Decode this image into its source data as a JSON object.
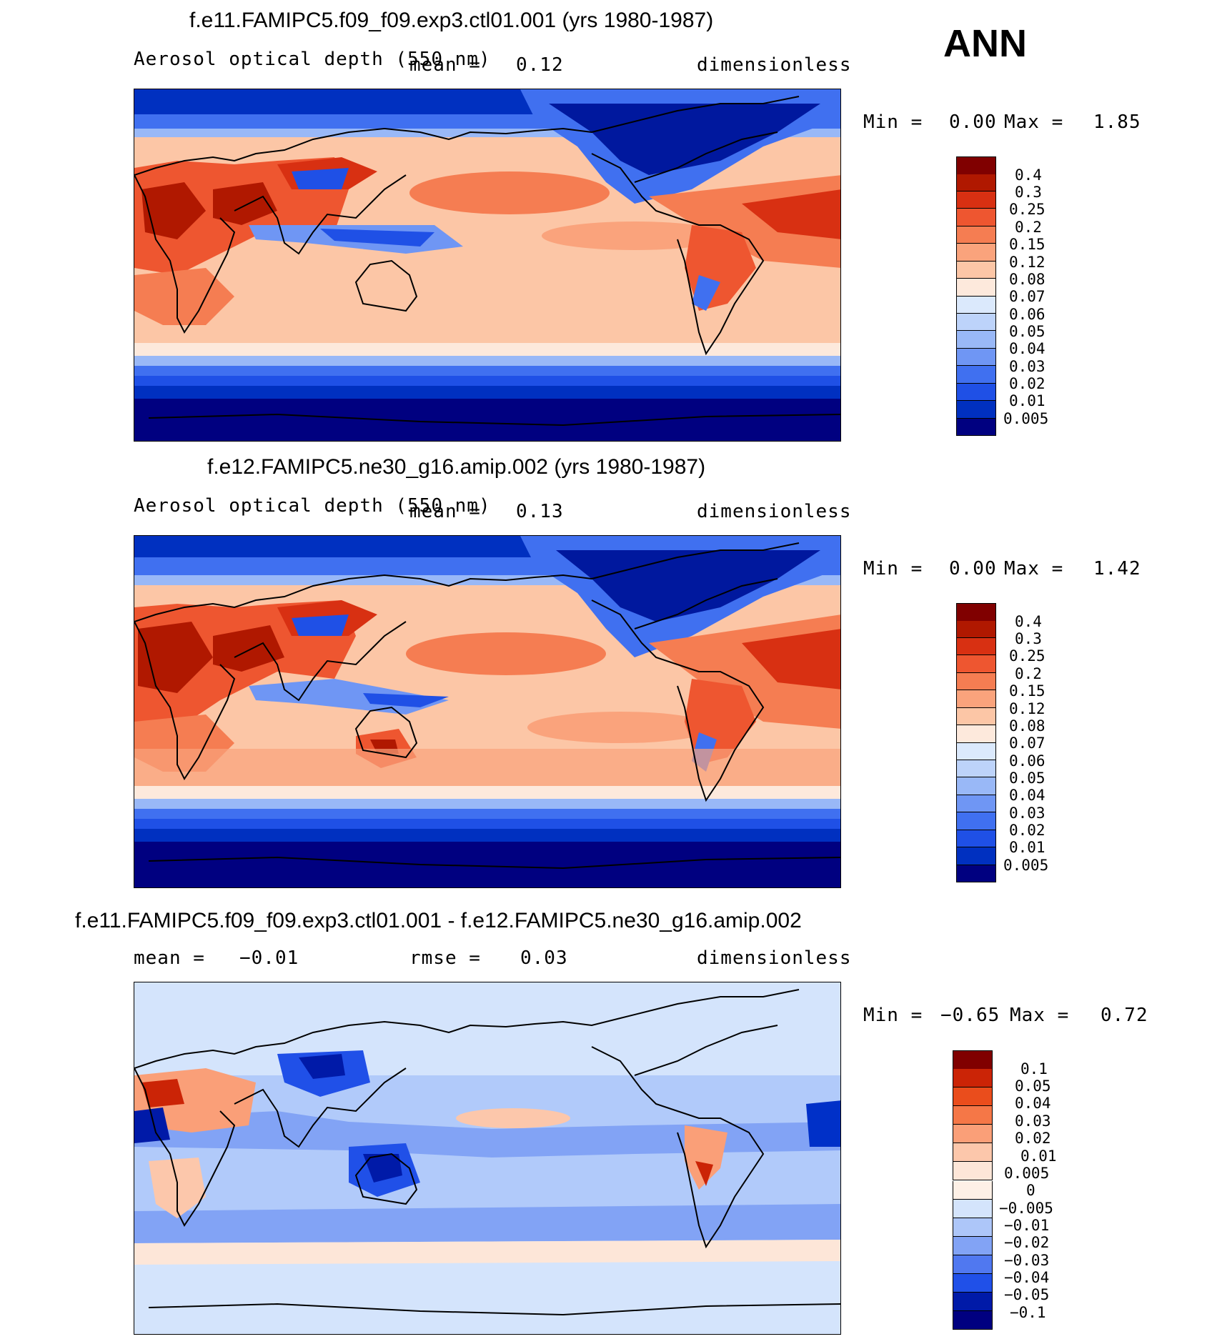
{
  "season": "ANN",
  "panels": [
    {
      "title": "f.e11.FAMIPC5.f09_f09.exp3.ctl01.001 (yrs 1980-1987)",
      "variable": "Aerosol optical depth (550 nm)",
      "mean_label": "mean =",
      "mean": "0.12",
      "units": "dimensionless",
      "min_label": "Min =",
      "min": "0.00",
      "max_label": "Max =",
      "max": "1.85"
    },
    {
      "title": "f.e12.FAMIPC5.ne30_g16.amip.002 (yrs 1980-1987)",
      "variable": "Aerosol optical depth (550 nm)",
      "mean_label": "mean =",
      "mean": "0.13",
      "units": "dimensionless",
      "min_label": "Min =",
      "min": "0.00",
      "max_label": "Max =",
      "max": "1.42"
    },
    {
      "title": "f.e11.FAMIPC5.f09_f09.exp3.ctl01.001 - f.e12.FAMIPC5.ne30_g16.amip.002",
      "mean_label": "mean =",
      "mean": "−0.01",
      "rmse_label": "rmse =",
      "rmse": "0.03",
      "units": "dimensionless",
      "min_label": "Min =",
      "min": "−0.65",
      "max_label": "Max =",
      "max": "0.72"
    }
  ],
  "colors": {
    "aod_scale": [
      "#000080",
      "#00189e",
      "#0030c0",
      "#1f50e6",
      "#4070f0",
      "#6f96f4",
      "#99b8f7",
      "#bdd3fa",
      "#dbe9fc",
      "#fde9dc",
      "#fcc6a6",
      "#faa37c",
      "#f57d52",
      "#ee5630",
      "#d83012",
      "#b01800",
      "#800000"
    ],
    "diff_scale": [
      "#000080",
      "#001aa8",
      "#0030c8",
      "#2050e8",
      "#5078f0",
      "#82a3f5",
      "#adc6f9",
      "#d4e4fc",
      "#fde6d8",
      "#fcc7ab",
      "#fa9f78",
      "#f57747",
      "#ea4d1c",
      "#cb2406",
      "#800000"
    ]
  },
  "chart_data": [
    {
      "type": "heatmap",
      "title": "f.e11.FAMIPC5.f09_f09.exp3.ctl01.001 (yrs 1980-1987)",
      "subtitle": "Aerosol optical depth (550 nm)",
      "units": "dimensionless",
      "projection": "cylindrical equidistant, Pacific-centred",
      "mean": 0.12,
      "min": 0.0,
      "max": 1.85,
      "contour_levels": [
        0.005,
        0.01,
        0.02,
        0.03,
        0.04,
        0.05,
        0.06,
        0.07,
        0.08,
        0.12,
        0.15,
        0.2,
        0.25,
        0.3,
        0.4
      ],
      "colorbar_labels": [
        "0.4",
        "0.3",
        "0.25",
        "0.2",
        "0.15",
        "0.12",
        "0.08",
        "0.07",
        "0.06",
        "0.05",
        "0.04",
        "0.03",
        "0.02",
        "0.01",
        "0.005"
      ]
    },
    {
      "type": "heatmap",
      "title": "f.e12.FAMIPC5.ne30_g16.amip.002 (yrs 1980-1987)",
      "subtitle": "Aerosol optical depth (550 nm)",
      "units": "dimensionless",
      "projection": "cylindrical equidistant, Pacific-centred",
      "mean": 0.13,
      "min": 0.0,
      "max": 1.42,
      "contour_levels": [
        0.005,
        0.01,
        0.02,
        0.03,
        0.04,
        0.05,
        0.06,
        0.07,
        0.08,
        0.12,
        0.15,
        0.2,
        0.25,
        0.3,
        0.4
      ],
      "colorbar_labels": [
        "0.4",
        "0.3",
        "0.25",
        "0.2",
        "0.15",
        "0.12",
        "0.08",
        "0.07",
        "0.06",
        "0.05",
        "0.04",
        "0.03",
        "0.02",
        "0.01",
        "0.005"
      ]
    },
    {
      "type": "heatmap",
      "title": "f.e11.FAMIPC5.f09_f09.exp3.ctl01.001 - f.e12.FAMIPC5.ne30_g16.amip.002",
      "units": "dimensionless",
      "projection": "cylindrical equidistant, Pacific-centred",
      "mean": -0.01,
      "rmse": 0.03,
      "min": -0.65,
      "max": 0.72,
      "contour_levels": [
        -0.1,
        -0.05,
        -0.04,
        -0.03,
        -0.02,
        -0.01,
        -0.005,
        0,
        0.005,
        0.01,
        0.02,
        0.03,
        0.04,
        0.05,
        0.1
      ],
      "colorbar_labels": [
        "0.1",
        "0.05",
        "0.04",
        "0.03",
        "0.02",
        "0.01",
        "0.005",
        "0",
        "−0.005",
        "−0.01",
        "−0.02",
        "−0.03",
        "−0.04",
        "−0.05",
        "−0.1"
      ]
    }
  ]
}
